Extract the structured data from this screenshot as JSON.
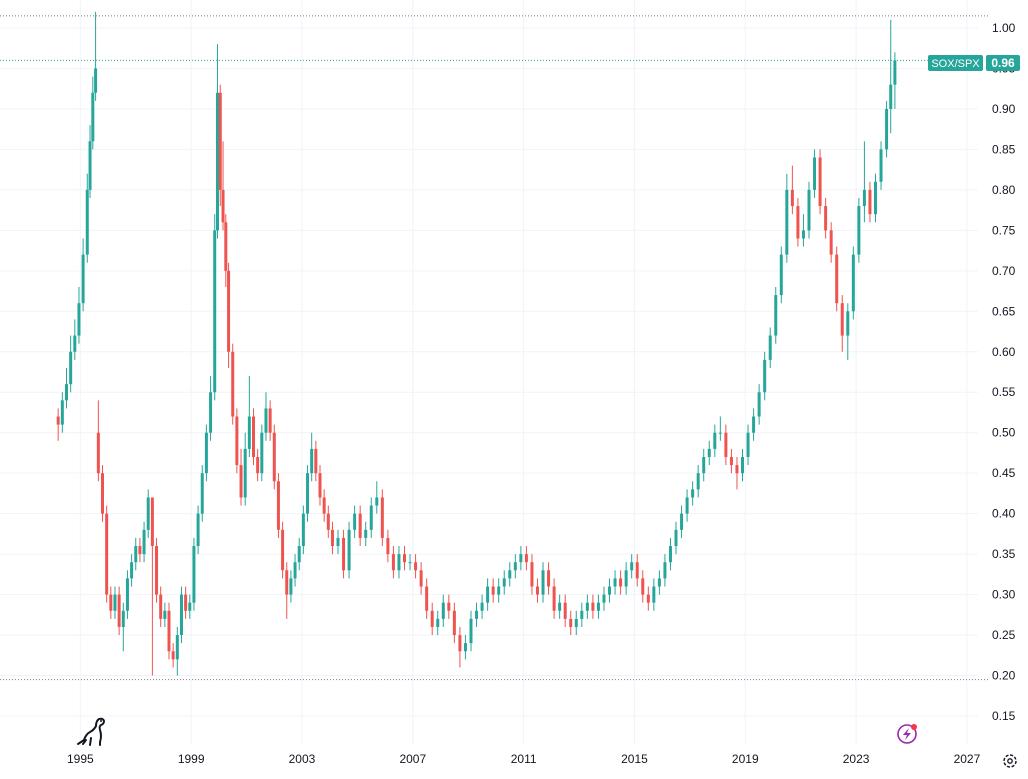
{
  "chart_data": {
    "type": "candlestick",
    "symbol": "SOX/SPX",
    "last_value": "0.96",
    "x_tick_labels": [
      "1995",
      "1999",
      "2003",
      "2007",
      "2011",
      "2015",
      "2019",
      "2023",
      "2027"
    ],
    "x_ticks": [
      1995,
      1999,
      2003,
      2007,
      2011,
      2015,
      2019,
      2023,
      2027
    ],
    "y_tick_labels": [
      "1.00",
      "0.95",
      "0.90",
      "0.85",
      "0.80",
      "0.75",
      "0.70",
      "0.65",
      "0.60",
      "0.55",
      "0.50",
      "0.45",
      "0.40",
      "0.35",
      "0.30",
      "0.25",
      "0.20",
      "0.15"
    ],
    "y_ticks": [
      1.0,
      0.95,
      0.9,
      0.85,
      0.8,
      0.75,
      0.7,
      0.65,
      0.6,
      0.55,
      0.5,
      0.45,
      0.4,
      0.35,
      0.3,
      0.25,
      0.2,
      0.15
    ],
    "xlim": [
      1992.1,
      2027.4
    ],
    "ylim": [
      0.135,
      1.0
    ],
    "grid": true,
    "reference_lines": [
      {
        "y": 1.015
      },
      {
        "y": 0.195
      }
    ],
    "up_color": "#26a69a",
    "down_color": "#ef5350",
    "series": [
      {
        "x": [
          1994.2,
          1994.35,
          1994.5,
          1994.65,
          1994.8,
          1994.95,
          1995.1,
          1995.25,
          1995.35,
          1995.45,
          1995.55,
          1995.65,
          1995.8,
          1995.95,
          1996.1,
          1996.25,
          1996.4,
          1996.55,
          1996.7,
          1996.85,
          1997.0,
          1997.15,
          1997.3,
          1997.45,
          1997.6,
          1997.75,
          1997.9,
          1998.05,
          1998.2,
          1998.35,
          1998.5,
          1998.65,
          1998.8,
          1998.95,
          1999.1,
          1999.25,
          1999.4,
          1999.55,
          1999.7,
          1999.85,
          1999.95,
          2000.05,
          2000.15,
          2000.25,
          2000.35,
          2000.5,
          2000.65,
          2000.8,
          2000.95,
          2001.1,
          2001.25,
          2001.4,
          2001.55,
          2001.7,
          2001.85,
          2002.0,
          2002.15,
          2002.3,
          2002.45,
          2002.6,
          2002.75,
          2002.9,
          2003.05,
          2003.2,
          2003.35,
          2003.5,
          2003.65,
          2003.8,
          2003.95,
          2004.1,
          2004.3,
          2004.5,
          2004.7,
          2004.9,
          2005.1,
          2005.3,
          2005.5,
          2005.7,
          2005.9,
          2006.1,
          2006.3,
          2006.5,
          2006.7,
          2006.9,
          2007.1,
          2007.3,
          2007.5,
          2007.7,
          2007.9,
          2008.1,
          2008.3,
          2008.5,
          2008.7,
          2008.9,
          2009.1,
          2009.3,
          2009.5,
          2009.7,
          2009.9,
          2010.1,
          2010.3,
          2010.5,
          2010.7,
          2010.9,
          2011.1,
          2011.3,
          2011.5,
          2011.7,
          2011.9,
          2012.1,
          2012.3,
          2012.5,
          2012.7,
          2012.9,
          2013.1,
          2013.3,
          2013.5,
          2013.7,
          2013.9,
          2014.1,
          2014.3,
          2014.5,
          2014.7,
          2014.9,
          2015.1,
          2015.3,
          2015.5,
          2015.7,
          2015.9,
          2016.1,
          2016.3,
          2016.5,
          2016.7,
          2016.9,
          2017.1,
          2017.3,
          2017.5,
          2017.7,
          2017.9,
          2018.1,
          2018.3,
          2018.5,
          2018.7,
          2018.9,
          2019.1,
          2019.3,
          2019.5,
          2019.7,
          2019.9,
          2020.1,
          2020.3,
          2020.5,
          2020.7,
          2020.9,
          2021.1,
          2021.3,
          2021.5,
          2021.7,
          2021.9,
          2022.1,
          2022.3,
          2022.5,
          2022.7,
          2022.9,
          2023.1,
          2023.3,
          2023.5,
          2023.7,
          2023.9,
          2024.1,
          2024.25,
          2024.4
        ],
        "open": [
          0.52,
          0.51,
          0.54,
          0.56,
          0.6,
          0.62,
          0.66,
          0.72,
          0.8,
          0.86,
          0.92,
          0.5,
          0.45,
          0.4,
          0.3,
          0.28,
          0.3,
          0.26,
          0.28,
          0.32,
          0.34,
          0.36,
          0.35,
          0.38,
          0.42,
          0.36,
          0.3,
          0.27,
          0.28,
          0.23,
          0.22,
          0.25,
          0.3,
          0.28,
          0.29,
          0.36,
          0.4,
          0.45,
          0.5,
          0.55,
          0.75,
          0.92,
          0.8,
          0.76,
          0.7,
          0.6,
          0.52,
          0.46,
          0.42,
          0.48,
          0.52,
          0.47,
          0.45,
          0.5,
          0.53,
          0.5,
          0.44,
          0.38,
          0.33,
          0.3,
          0.32,
          0.34,
          0.36,
          0.4,
          0.45,
          0.48,
          0.45,
          0.42,
          0.4,
          0.38,
          0.36,
          0.37,
          0.33,
          0.38,
          0.4,
          0.37,
          0.38,
          0.41,
          0.42,
          0.37,
          0.35,
          0.33,
          0.35,
          0.34,
          0.34,
          0.33,
          0.31,
          0.28,
          0.26,
          0.27,
          0.29,
          0.28,
          0.25,
          0.23,
          0.24,
          0.27,
          0.28,
          0.29,
          0.31,
          0.3,
          0.31,
          0.32,
          0.33,
          0.34,
          0.35,
          0.34,
          0.31,
          0.3,
          0.33,
          0.31,
          0.28,
          0.29,
          0.27,
          0.26,
          0.27,
          0.28,
          0.29,
          0.28,
          0.29,
          0.3,
          0.31,
          0.32,
          0.31,
          0.33,
          0.34,
          0.32,
          0.3,
          0.29,
          0.31,
          0.32,
          0.34,
          0.36,
          0.38,
          0.4,
          0.42,
          0.43,
          0.45,
          0.47,
          0.48,
          0.5,
          0.5,
          0.47,
          0.46,
          0.45,
          0.47,
          0.5,
          0.52,
          0.55,
          0.59,
          0.62,
          0.67,
          0.72,
          0.8,
          0.78,
          0.74,
          0.75,
          0.8,
          0.84,
          0.78,
          0.75,
          0.72,
          0.66,
          0.62,
          0.65,
          0.72,
          0.78,
          0.8,
          0.77,
          0.81,
          0.85,
          0.9,
          0.93
        ],
        "close": [
          0.51,
          0.54,
          0.56,
          0.6,
          0.62,
          0.66,
          0.72,
          0.8,
          0.86,
          0.92,
          0.95,
          0.45,
          0.4,
          0.3,
          0.28,
          0.3,
          0.26,
          0.28,
          0.32,
          0.34,
          0.36,
          0.35,
          0.38,
          0.42,
          0.36,
          0.3,
          0.27,
          0.28,
          0.23,
          0.22,
          0.25,
          0.3,
          0.28,
          0.29,
          0.36,
          0.4,
          0.45,
          0.5,
          0.55,
          0.75,
          0.92,
          0.8,
          0.76,
          0.7,
          0.6,
          0.52,
          0.46,
          0.42,
          0.48,
          0.52,
          0.47,
          0.45,
          0.5,
          0.53,
          0.5,
          0.44,
          0.38,
          0.33,
          0.3,
          0.32,
          0.34,
          0.36,
          0.4,
          0.45,
          0.48,
          0.45,
          0.42,
          0.4,
          0.38,
          0.36,
          0.37,
          0.33,
          0.38,
          0.4,
          0.37,
          0.38,
          0.41,
          0.42,
          0.37,
          0.35,
          0.33,
          0.35,
          0.34,
          0.34,
          0.33,
          0.31,
          0.28,
          0.26,
          0.27,
          0.29,
          0.28,
          0.25,
          0.23,
          0.24,
          0.27,
          0.28,
          0.29,
          0.31,
          0.3,
          0.31,
          0.32,
          0.33,
          0.34,
          0.35,
          0.34,
          0.31,
          0.3,
          0.33,
          0.31,
          0.28,
          0.29,
          0.27,
          0.26,
          0.27,
          0.28,
          0.29,
          0.28,
          0.29,
          0.3,
          0.31,
          0.32,
          0.31,
          0.33,
          0.34,
          0.32,
          0.3,
          0.29,
          0.31,
          0.32,
          0.34,
          0.36,
          0.38,
          0.4,
          0.42,
          0.43,
          0.45,
          0.47,
          0.48,
          0.5,
          0.5,
          0.47,
          0.46,
          0.45,
          0.47,
          0.5,
          0.52,
          0.55,
          0.59,
          0.62,
          0.67,
          0.72,
          0.8,
          0.78,
          0.74,
          0.75,
          0.8,
          0.84,
          0.78,
          0.75,
          0.72,
          0.66,
          0.62,
          0.65,
          0.72,
          0.78,
          0.8,
          0.77,
          0.81,
          0.85,
          0.9,
          0.93,
          0.96
        ],
        "high": [
          0.53,
          0.55,
          0.58,
          0.62,
          0.64,
          0.68,
          0.74,
          0.82,
          0.88,
          0.94,
          1.02,
          0.54,
          0.46,
          0.41,
          0.31,
          0.31,
          0.31,
          0.29,
          0.33,
          0.35,
          0.37,
          0.37,
          0.39,
          0.43,
          0.42,
          0.37,
          0.31,
          0.29,
          0.29,
          0.24,
          0.26,
          0.31,
          0.31,
          0.3,
          0.37,
          0.41,
          0.46,
          0.51,
          0.57,
          0.77,
          0.98,
          0.93,
          0.86,
          0.77,
          0.71,
          0.61,
          0.53,
          0.48,
          0.5,
          0.57,
          0.53,
          0.48,
          0.51,
          0.55,
          0.54,
          0.51,
          0.45,
          0.39,
          0.34,
          0.33,
          0.35,
          0.37,
          0.41,
          0.46,
          0.5,
          0.49,
          0.46,
          0.43,
          0.41,
          0.39,
          0.38,
          0.38,
          0.39,
          0.41,
          0.41,
          0.39,
          0.42,
          0.44,
          0.43,
          0.38,
          0.36,
          0.36,
          0.36,
          0.35,
          0.35,
          0.34,
          0.32,
          0.29,
          0.28,
          0.3,
          0.3,
          0.29,
          0.26,
          0.25,
          0.28,
          0.29,
          0.3,
          0.32,
          0.32,
          0.32,
          0.33,
          0.34,
          0.35,
          0.36,
          0.36,
          0.35,
          0.32,
          0.34,
          0.34,
          0.32,
          0.3,
          0.3,
          0.28,
          0.28,
          0.29,
          0.3,
          0.3,
          0.3,
          0.31,
          0.32,
          0.33,
          0.33,
          0.34,
          0.35,
          0.35,
          0.33,
          0.31,
          0.32,
          0.33,
          0.35,
          0.37,
          0.39,
          0.41,
          0.43,
          0.44,
          0.46,
          0.48,
          0.49,
          0.51,
          0.52,
          0.51,
          0.48,
          0.47,
          0.48,
          0.51,
          0.53,
          0.56,
          0.6,
          0.63,
          0.68,
          0.73,
          0.82,
          0.83,
          0.79,
          0.77,
          0.81,
          0.85,
          0.85,
          0.79,
          0.76,
          0.73,
          0.67,
          0.66,
          0.73,
          0.79,
          0.86,
          0.81,
          0.82,
          0.86,
          0.91,
          1.01,
          0.97
        ],
        "low": [
          0.49,
          0.5,
          0.53,
          0.55,
          0.59,
          0.61,
          0.65,
          0.71,
          0.79,
          0.85,
          0.91,
          0.44,
          0.39,
          0.29,
          0.27,
          0.27,
          0.25,
          0.23,
          0.27,
          0.31,
          0.33,
          0.34,
          0.34,
          0.37,
          0.2,
          0.29,
          0.26,
          0.26,
          0.22,
          0.21,
          0.2,
          0.24,
          0.27,
          0.27,
          0.28,
          0.35,
          0.39,
          0.44,
          0.49,
          0.54,
          0.74,
          0.78,
          0.75,
          0.68,
          0.58,
          0.51,
          0.45,
          0.41,
          0.41,
          0.47,
          0.46,
          0.44,
          0.44,
          0.49,
          0.49,
          0.43,
          0.37,
          0.32,
          0.27,
          0.29,
          0.31,
          0.33,
          0.35,
          0.39,
          0.44,
          0.44,
          0.41,
          0.39,
          0.37,
          0.35,
          0.35,
          0.32,
          0.32,
          0.37,
          0.36,
          0.36,
          0.37,
          0.4,
          0.36,
          0.34,
          0.32,
          0.32,
          0.33,
          0.33,
          0.32,
          0.3,
          0.27,
          0.25,
          0.25,
          0.26,
          0.27,
          0.24,
          0.21,
          0.22,
          0.23,
          0.26,
          0.27,
          0.28,
          0.29,
          0.29,
          0.3,
          0.31,
          0.32,
          0.33,
          0.33,
          0.3,
          0.29,
          0.29,
          0.3,
          0.27,
          0.27,
          0.26,
          0.25,
          0.25,
          0.26,
          0.27,
          0.27,
          0.27,
          0.28,
          0.29,
          0.3,
          0.3,
          0.3,
          0.32,
          0.31,
          0.29,
          0.28,
          0.28,
          0.3,
          0.31,
          0.33,
          0.35,
          0.37,
          0.39,
          0.41,
          0.42,
          0.44,
          0.46,
          0.47,
          0.49,
          0.46,
          0.45,
          0.43,
          0.44,
          0.46,
          0.49,
          0.51,
          0.54,
          0.58,
          0.61,
          0.66,
          0.71,
          0.77,
          0.73,
          0.73,
          0.74,
          0.79,
          0.77,
          0.74,
          0.71,
          0.65,
          0.6,
          0.59,
          0.64,
          0.71,
          0.76,
          0.76,
          0.76,
          0.8,
          0.84,
          0.87,
          0.9
        ]
      }
    ]
  },
  "ui": {
    "symbol_tag_label": "SOX/SPX",
    "price_tag_value": "0.96",
    "brand_icon": "dinosaur-logo-icon",
    "lightning_icon": "lightning-icon",
    "settings_icon": "gear-icon"
  }
}
